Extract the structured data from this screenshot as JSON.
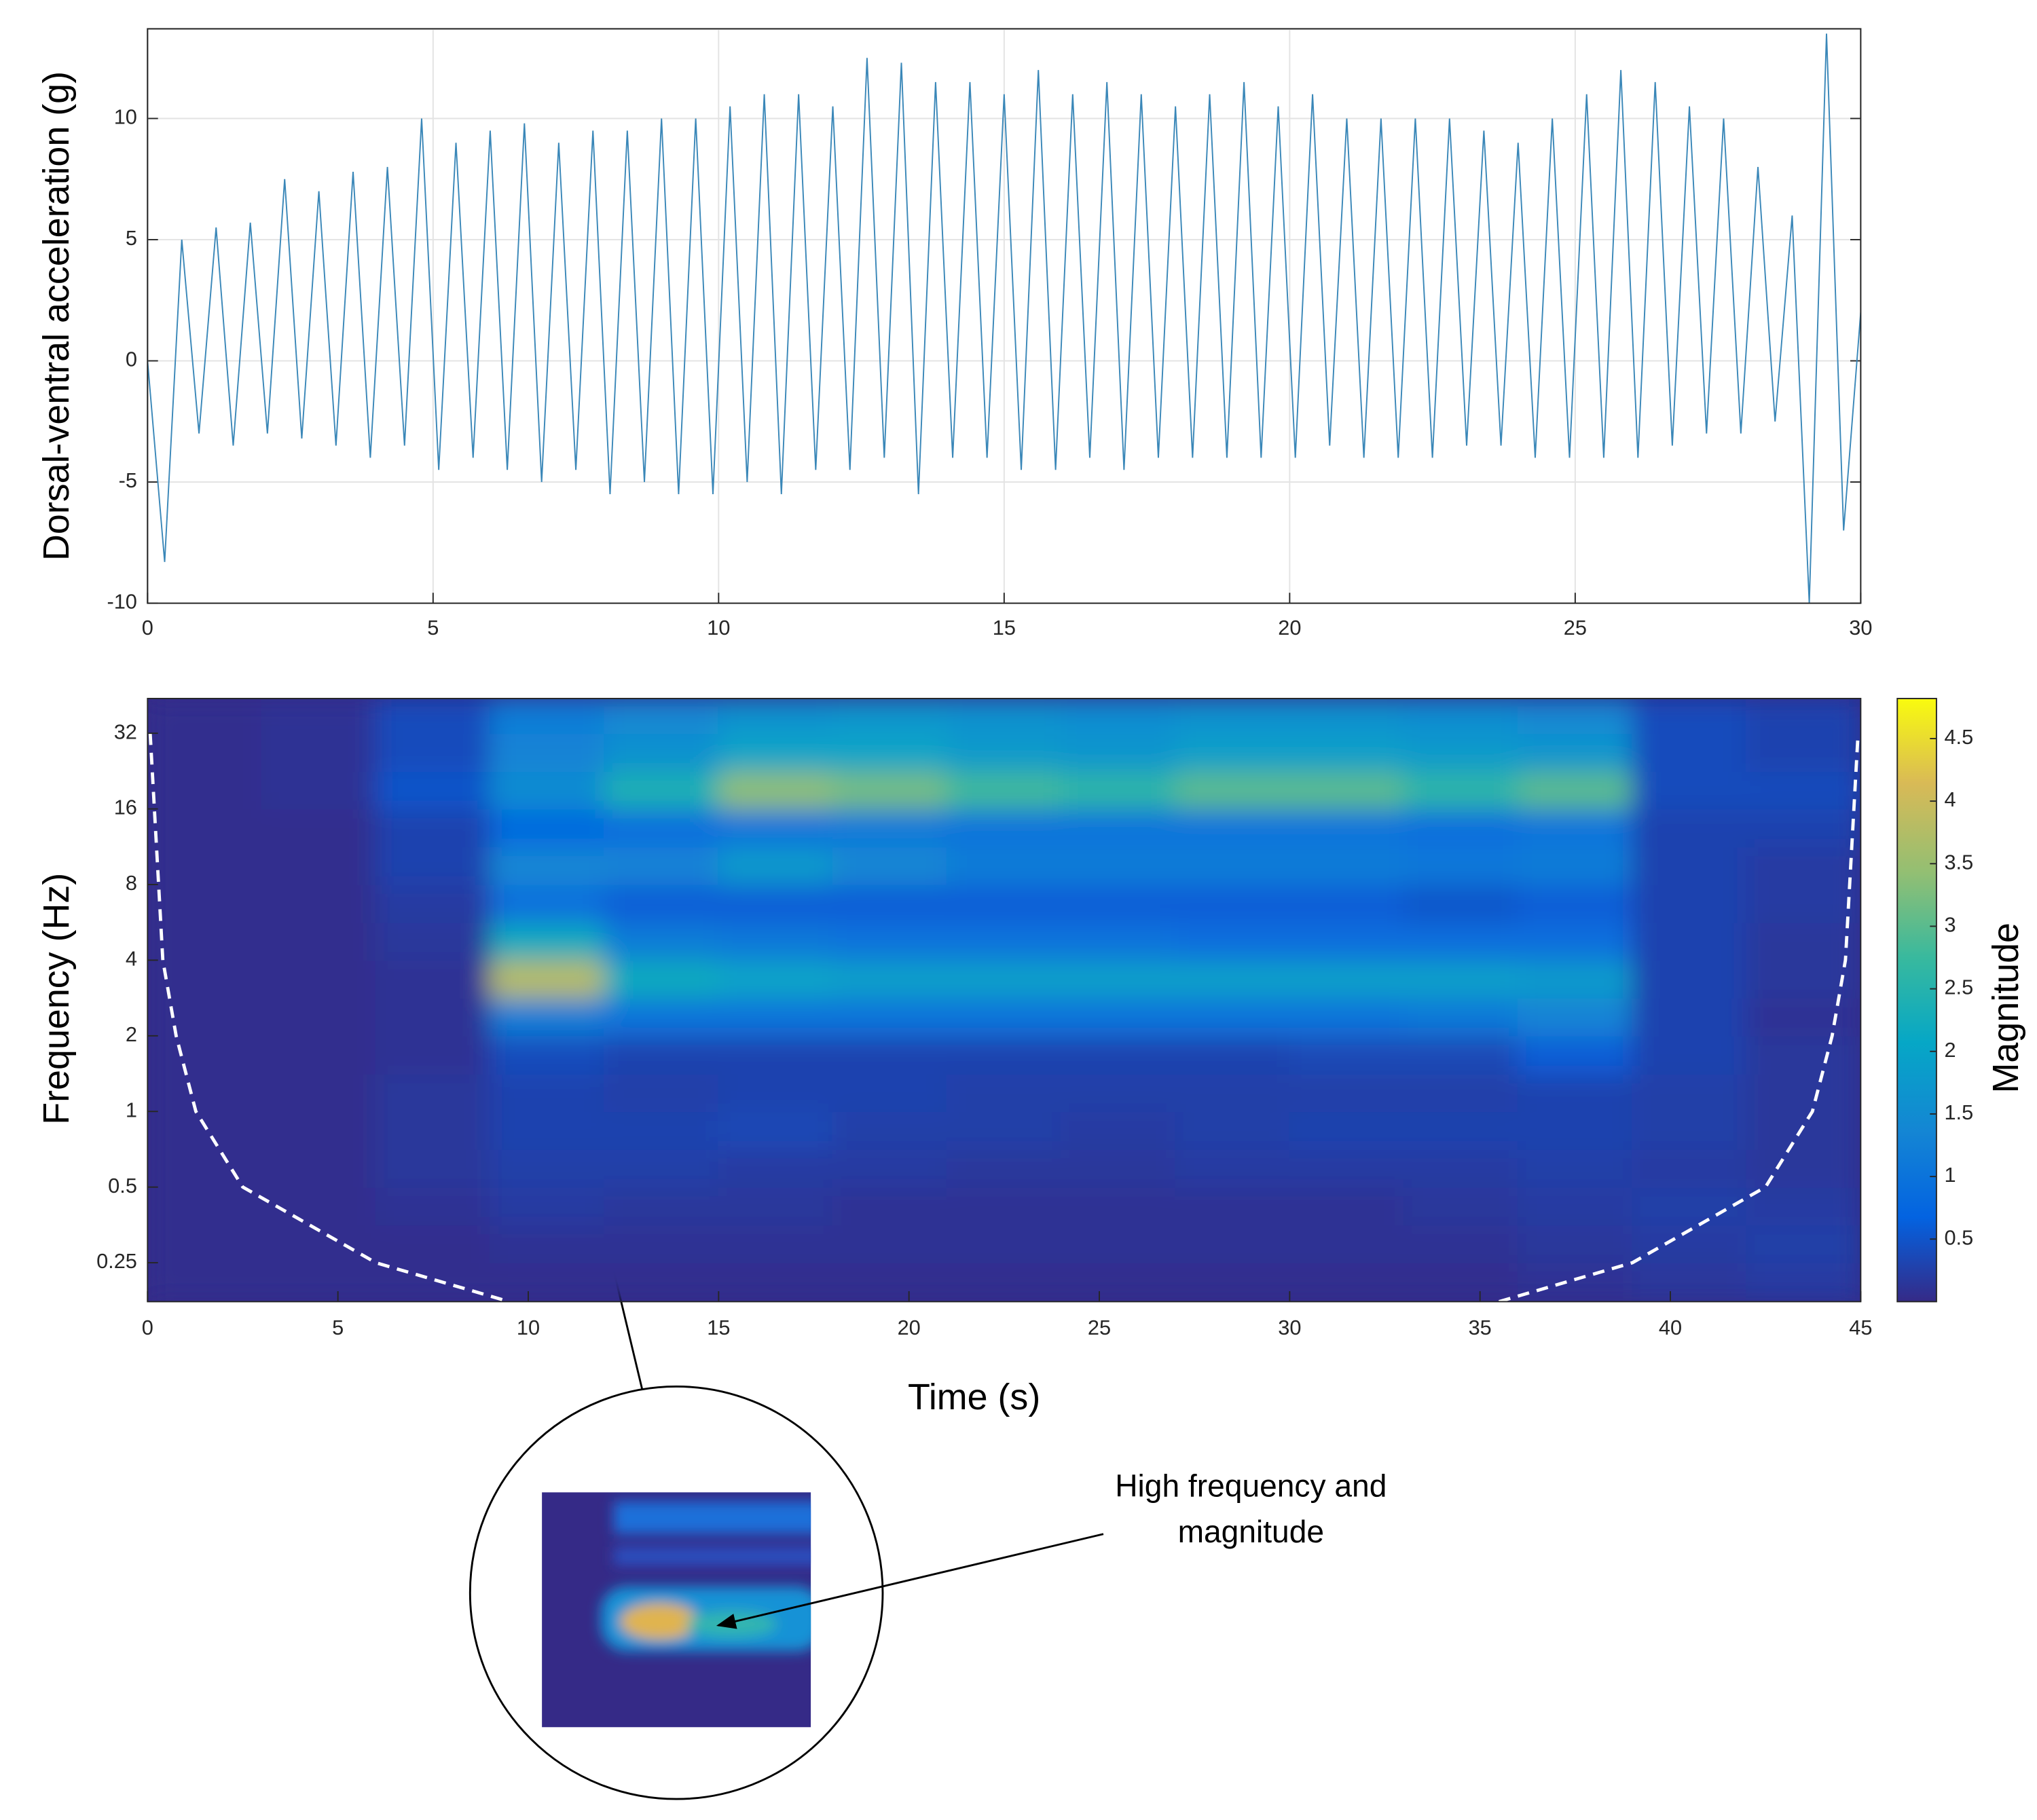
{
  "chart_data": [
    {
      "type": "line",
      "ylabel": "Dorsal-ventral acceleration (g)",
      "color": "#3a87b8",
      "grid": true,
      "x": [
        0,
        0.3,
        0.6,
        0.9,
        1.2,
        1.5,
        1.8,
        2.1,
        2.4,
        2.7,
        3.0,
        3.3,
        3.6,
        3.9,
        4.2,
        4.5,
        4.8,
        5.1,
        5.4,
        5.7,
        6.0,
        6.3,
        6.6,
        6.9,
        7.2,
        7.5,
        7.8,
        8.1,
        8.4,
        8.7,
        9.0,
        9.3,
        9.6,
        9.9,
        10.2,
        10.5,
        10.8,
        11.1,
        11.4,
        11.7,
        12.0,
        12.3,
        12.6,
        12.9,
        13.2,
        13.5,
        13.8,
        14.1,
        14.4,
        14.7,
        15.0,
        15.3,
        15.6,
        15.9,
        16.2,
        16.5,
        16.8,
        17.1,
        17.4,
        17.7,
        18.0,
        18.3,
        18.6,
        18.9,
        19.2,
        19.5,
        19.8,
        20.1,
        20.4,
        20.7,
        21.0,
        21.3,
        21.6,
        21.9,
        22.2,
        22.5,
        22.8,
        23.1,
        23.4,
        23.7,
        24.0,
        24.3,
        24.6,
        24.9,
        25.2,
        25.5,
        25.8,
        26.1,
        26.4,
        26.7,
        27.0,
        27.3,
        27.6,
        27.9,
        28.2,
        28.5,
        28.8,
        29.1,
        29.4,
        29.7,
        30.0
      ],
      "values": [
        0,
        -8.3,
        5,
        -3,
        5.5,
        -3.5,
        5.7,
        -3,
        7.5,
        -3.2,
        7,
        -3.5,
        7.8,
        -4,
        8,
        -3.5,
        10,
        -4.5,
        9,
        -4,
        9.5,
        -4.5,
        9.8,
        -5,
        9,
        -4.5,
        9.5,
        -5.5,
        9.5,
        -5,
        10,
        -5.5,
        10,
        -5.5,
        10.5,
        -5,
        11,
        -5.5,
        11,
        -4.5,
        10.5,
        -4.5,
        12.5,
        -4,
        12.3,
        -5.5,
        11.5,
        -4,
        11.5,
        -4,
        11,
        -4.5,
        12,
        -4.5,
        11,
        -4,
        11.5,
        -4.5,
        11,
        -4,
        10.5,
        -4,
        11,
        -4,
        11.5,
        -4,
        10.5,
        -4,
        11,
        -3.5,
        10,
        -4,
        10,
        -4,
        10,
        -4,
        10,
        -3.5,
        9.5,
        -3.5,
        9,
        -4,
        10,
        -4,
        11,
        -4,
        12,
        -4,
        11.5,
        -3.5,
        10.5,
        -3,
        10,
        -3,
        8,
        -2.5,
        6,
        -10,
        13.5,
        -7,
        2
      ],
      "xlim": [
        0,
        30
      ],
      "xticks": [
        0,
        5,
        10,
        15,
        20,
        25,
        30
      ],
      "ylim": [
        -10,
        13.7
      ],
      "yticks": [
        -10,
        -5,
        0,
        5,
        10
      ]
    },
    {
      "type": "heatmap",
      "xlabel": "Time (s)",
      "ylabel": "Frequency (Hz)",
      "colorbar_label": "Magnitude",
      "colormap": "parula",
      "yscale": "log",
      "x_bins": [
        0,
        3,
        6,
        9,
        12,
        15,
        18,
        21,
        24,
        27,
        30,
        33,
        36,
        39,
        42,
        45
      ],
      "y_bins": [
        0.175,
        0.25,
        0.354,
        0.5,
        0.707,
        1,
        1.41,
        2,
        2.83,
        4,
        5.66,
        8,
        11.3,
        16,
        22.6,
        32,
        44
      ],
      "z": [
        [
          0.05,
          0.05,
          0.05,
          0.05,
          0.05,
          0.05,
          0.05,
          0.05,
          0.05,
          0.05,
          0.05,
          0.05,
          0.1,
          0.15,
          0.2
        ],
        [
          0.05,
          0.05,
          0.05,
          0.1,
          0.1,
          0.1,
          0.1,
          0.1,
          0.1,
          0.1,
          0.1,
          0.1,
          0.15,
          0.2,
          0.25
        ],
        [
          0.05,
          0.05,
          0.1,
          0.2,
          0.15,
          0.15,
          0.1,
          0.1,
          0.1,
          0.1,
          0.1,
          0.15,
          0.2,
          0.25,
          0.2
        ],
        [
          0.05,
          0.05,
          0.15,
          0.25,
          0.25,
          0.2,
          0.2,
          0.15,
          0.15,
          0.2,
          0.2,
          0.2,
          0.25,
          0.2,
          0.15
        ],
        [
          0.05,
          0.05,
          0.15,
          0.3,
          0.3,
          0.35,
          0.25,
          0.25,
          0.2,
          0.25,
          0.3,
          0.3,
          0.3,
          0.25,
          0.15
        ],
        [
          0.05,
          0.05,
          0.15,
          0.3,
          0.25,
          0.3,
          0.3,
          0.25,
          0.25,
          0.25,
          0.25,
          0.25,
          0.3,
          0.25,
          0.15
        ],
        [
          0.05,
          0.05,
          0.1,
          0.4,
          0.3,
          0.3,
          0.3,
          0.3,
          0.3,
          0.3,
          0.35,
          0.35,
          0.6,
          0.3,
          0.15
        ],
        [
          0.05,
          0.05,
          0.1,
          1.2,
          1.0,
          1.0,
          1.0,
          1.0,
          1.0,
          1.0,
          1.0,
          1.1,
          1.3,
          0.3,
          0.1
        ],
        [
          0.05,
          0.05,
          0.1,
          3.8,
          2.2,
          2.0,
          1.9,
          1.9,
          1.9,
          1.9,
          1.9,
          1.9,
          1.8,
          0.3,
          0.15
        ],
        [
          0.05,
          0.05,
          0.15,
          2.2,
          1.2,
          1.1,
          1.0,
          1.0,
          1.0,
          0.9,
          0.9,
          0.9,
          0.9,
          0.3,
          0.15
        ],
        [
          0.05,
          0.05,
          0.2,
          0.9,
          0.6,
          0.6,
          0.6,
          0.6,
          0.6,
          0.6,
          0.6,
          0.5,
          0.6,
          0.3,
          0.2
        ],
        [
          0.05,
          0.05,
          0.3,
          1.4,
          1.3,
          1.8,
          1.4,
          1.2,
          1.2,
          1.2,
          1.2,
          1.1,
          1.2,
          0.3,
          0.2
        ],
        [
          0.05,
          0.05,
          0.3,
          0.8,
          0.9,
          1.0,
          1.1,
          1.0,
          1.0,
          1.0,
          1.0,
          0.9,
          1.0,
          0.3,
          0.3
        ],
        [
          0.05,
          0.1,
          0.5,
          1.5,
          2.4,
          3.4,
          3.2,
          2.8,
          2.6,
          3.0,
          3.0,
          2.6,
          3.0,
          0.4,
          0.4
        ],
        [
          0.05,
          0.1,
          0.4,
          1.3,
          1.6,
          2.0,
          2.0,
          1.8,
          1.7,
          1.9,
          1.9,
          1.8,
          1.7,
          0.4,
          0.3
        ],
        [
          0.05,
          0.1,
          0.4,
          1.2,
          1.4,
          1.6,
          1.7,
          1.6,
          1.5,
          1.6,
          1.6,
          1.5,
          1.4,
          0.4,
          0.3
        ]
      ],
      "coi": [
        {
          "x": [
            0.07,
            0.4,
            0.75,
            1.27,
            2.5,
            6,
            9.5
          ],
          "y": [
            32,
            4,
            2,
            1,
            0.5,
            0.25,
            0.175
          ]
        },
        {
          "x": [
            35.5,
            39,
            42.5,
            43.73,
            44.25,
            44.6,
            44.93
          ],
          "y": [
            0.175,
            0.25,
            0.5,
            1,
            2,
            4,
            32
          ]
        }
      ],
      "xlim": [
        0,
        45
      ],
      "xticks": [
        0,
        5,
        10,
        15,
        20,
        25,
        30,
        35,
        40,
        45
      ],
      "ylim": [
        0.175,
        44
      ],
      "yticks": [
        0.25,
        0.5,
        1,
        2,
        4,
        8,
        16,
        32
      ],
      "clim": [
        0,
        4.82
      ],
      "cticks": [
        0.5,
        1,
        1.5,
        2,
        2.5,
        3,
        3.5,
        4,
        4.5
      ],
      "annotation_lines": [
        "High frequency and",
        "magnitude"
      ]
    }
  ]
}
